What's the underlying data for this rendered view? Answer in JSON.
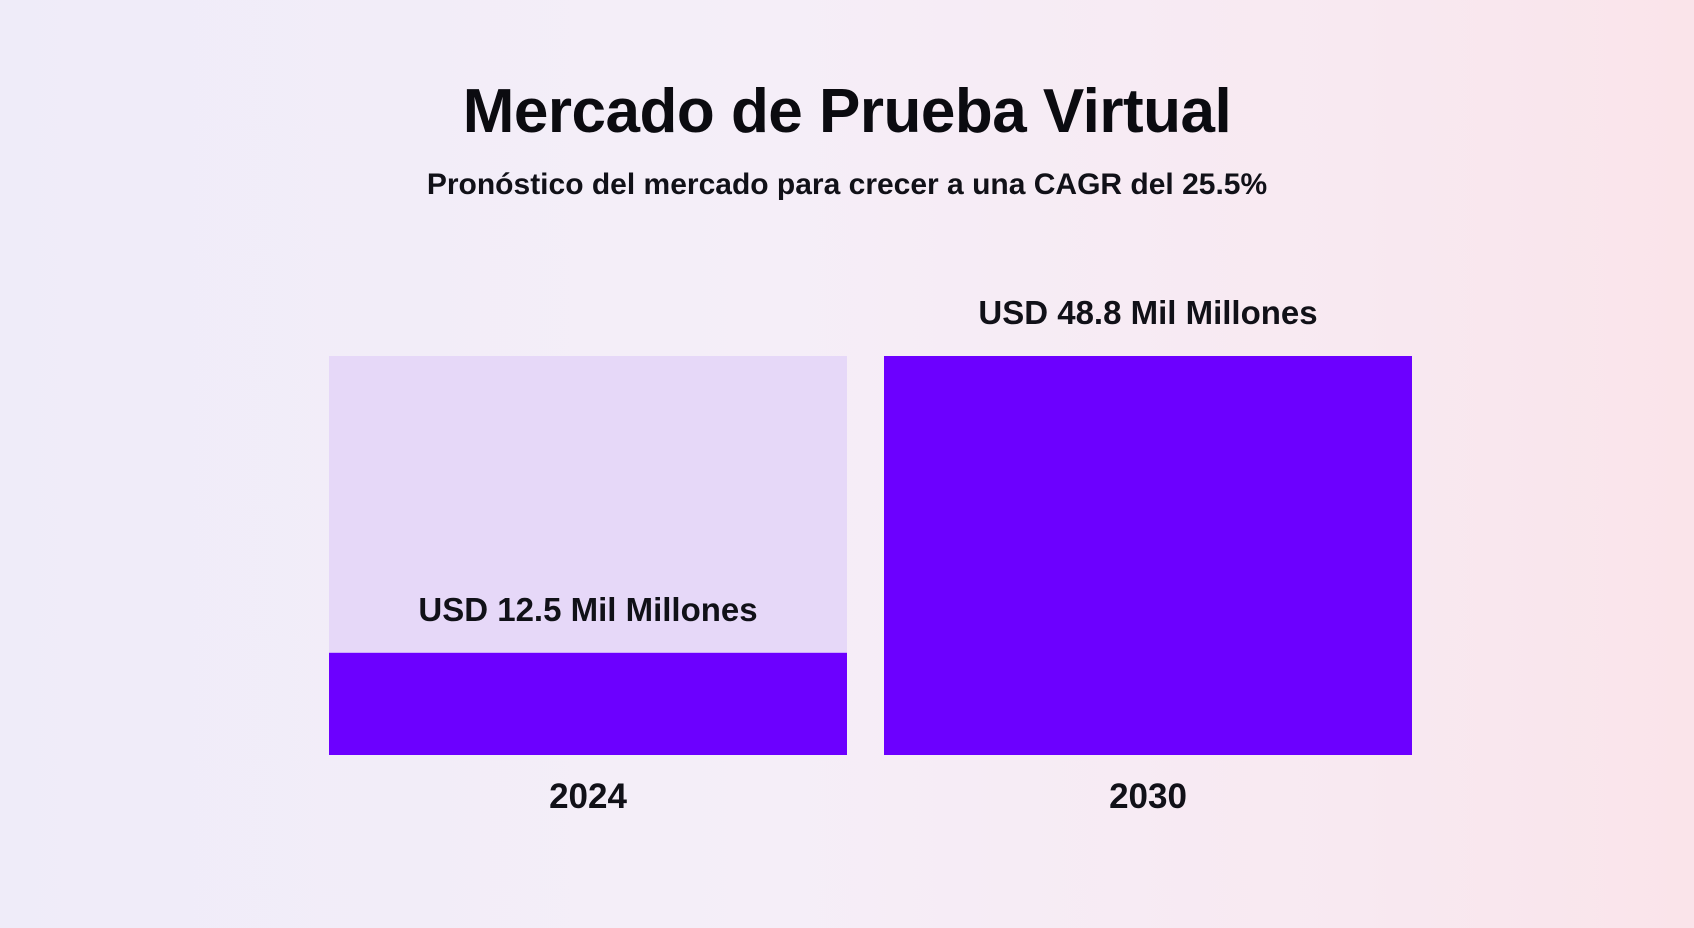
{
  "chart_data": {
    "type": "bar",
    "title": "Mercado de Prueba Virtual",
    "subtitle": "Pronóstico del mercado para crecer a una CAGR del 25.5%",
    "categories": [
      "2024",
      "2030"
    ],
    "series": [
      {
        "values": [
          12.5,
          48.8
        ],
        "data_labels": [
          "USD 12.5 Mil Millones",
          "USD 48.8 Mil Millones"
        ]
      }
    ],
    "ylim": [
      0,
      48.8
    ],
    "grid": false,
    "legend": "none",
    "colors": {
      "bar": "#6c00ff",
      "bar_track": "#e6d8f8"
    }
  }
}
